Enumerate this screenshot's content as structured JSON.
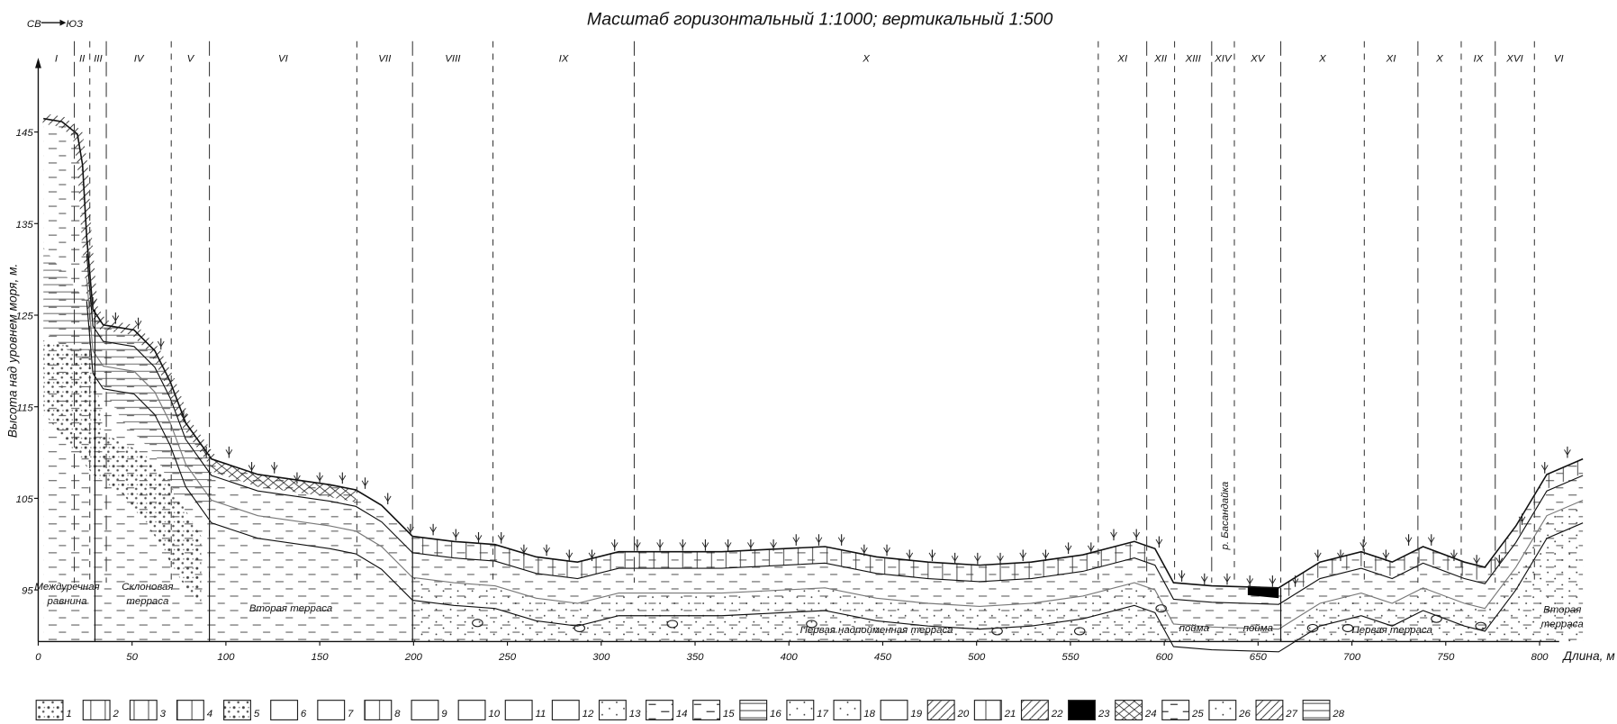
{
  "header": {
    "title": "Масштаб горизонтальный 1:1000; вертикальный 1:500",
    "direction_from": "СВ",
    "direction_to": "ЮЗ"
  },
  "axes": {
    "y_label": "Высота над уровнем моря, м.",
    "x_label": "Длина, м",
    "yticks": [
      95,
      105,
      115,
      125,
      135,
      145
    ],
    "xticks": [
      0,
      50,
      100,
      150,
      200,
      250,
      300,
      350,
      400,
      450,
      500,
      550,
      600,
      650,
      700,
      750,
      800
    ]
  },
  "zones": [
    "I",
    "II",
    "III",
    "IV",
    "V",
    "VI",
    "VII",
    "VIII",
    "IX",
    "X",
    "XI",
    "XII",
    "XIII",
    "XIV",
    "XV",
    "X",
    "XI",
    "X",
    "IX",
    "XVI",
    "VI"
  ],
  "landforms": [
    {
      "lines": [
        "Междуречная",
        "равнина"
      ]
    },
    {
      "lines": [
        "Склоновая",
        "терраса"
      ]
    },
    {
      "lines": [
        "Вторая терраса"
      ]
    },
    {
      "lines": [
        "Первая надпойменная терраса"
      ]
    },
    {
      "lines": [
        "пойма"
      ]
    },
    {
      "lines": [
        "р. Басандайка"
      ]
    },
    {
      "lines": [
        "пойма"
      ]
    },
    {
      "lines": [
        "Первая терраса"
      ]
    },
    {
      "lines": [
        "Вторая",
        "терраса"
      ]
    }
  ],
  "legend": [
    1,
    2,
    3,
    4,
    5,
    6,
    7,
    8,
    9,
    10,
    11,
    12,
    13,
    14,
    15,
    16,
    17,
    18,
    19,
    20,
    21,
    22,
    23,
    24,
    25,
    26,
    27,
    28
  ]
}
